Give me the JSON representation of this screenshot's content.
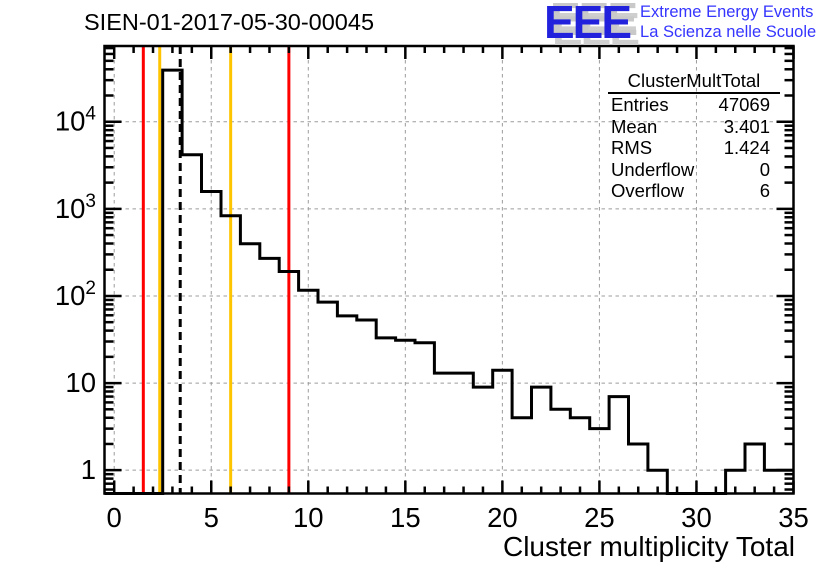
{
  "header": {
    "title": "SIEN-01-2017-05-30-00045"
  },
  "logo": {
    "acronym": "EEE",
    "line1": "Extreme Energy Events",
    "line2": "La Scienza nelle Scuole",
    "acronym_color": "#2222dd",
    "text_color": "#3535ff"
  },
  "stats": {
    "title": "ClusterMultTotal",
    "rows": [
      {
        "label": "Entries",
        "value": "47069"
      },
      {
        "label": "Mean",
        "value": "3.401"
      },
      {
        "label": "RMS",
        "value": "1.424"
      },
      {
        "label": "Underflow",
        "value": "0"
      },
      {
        "label": "Overflow",
        "value": "6"
      }
    ]
  },
  "chart_data": {
    "type": "bar",
    "subtype": "step-histogram",
    "title": "SIEN-01-2017-05-30-00045",
    "xlabel": "Cluster multiplicity Total",
    "ylabel": "",
    "ylog": true,
    "grid": true,
    "bin_width": 1,
    "bin_centers": [
      0,
      1,
      2,
      3,
      4,
      5,
      6,
      7,
      8,
      9,
      10,
      11,
      12,
      13,
      14,
      15,
      16,
      17,
      18,
      19,
      20,
      21,
      22,
      23,
      24,
      25,
      26,
      27,
      28,
      29,
      30,
      31,
      32,
      33,
      34,
      35
    ],
    "values": [
      0,
      0,
      0,
      39115,
      4180,
      1580,
      835,
      397,
      270,
      191,
      116,
      85,
      59,
      53,
      33,
      31,
      29,
      13,
      13,
      9,
      14,
      4,
      9,
      5,
      4,
      3,
      7,
      2,
      1,
      0,
      0,
      0,
      1,
      2,
      1,
      1
    ],
    "xlim": [
      -0.5,
      35
    ],
    "ylim": [
      0.54,
      74000
    ],
    "x_major_ticks": [
      0,
      5,
      10,
      15,
      20,
      25,
      30,
      35
    ],
    "x_minor_step": 1,
    "y_decades": [
      1,
      10,
      100,
      1000,
      10000
    ],
    "line_color": "#000000",
    "grid_color": "#9c9c9c",
    "marker_lines": [
      {
        "x": 1.5,
        "color": "#ff0000",
        "style": "solid"
      },
      {
        "x": 2.5,
        "color": "#ffc400",
        "style": "solid"
      },
      {
        "x": 3.401,
        "color": "#000000",
        "style": "dashed"
      },
      {
        "x": 6,
        "color": "#ffc400",
        "style": "solid"
      },
      {
        "x": 9,
        "color": "#ff0000",
        "style": "solid"
      }
    ]
  }
}
